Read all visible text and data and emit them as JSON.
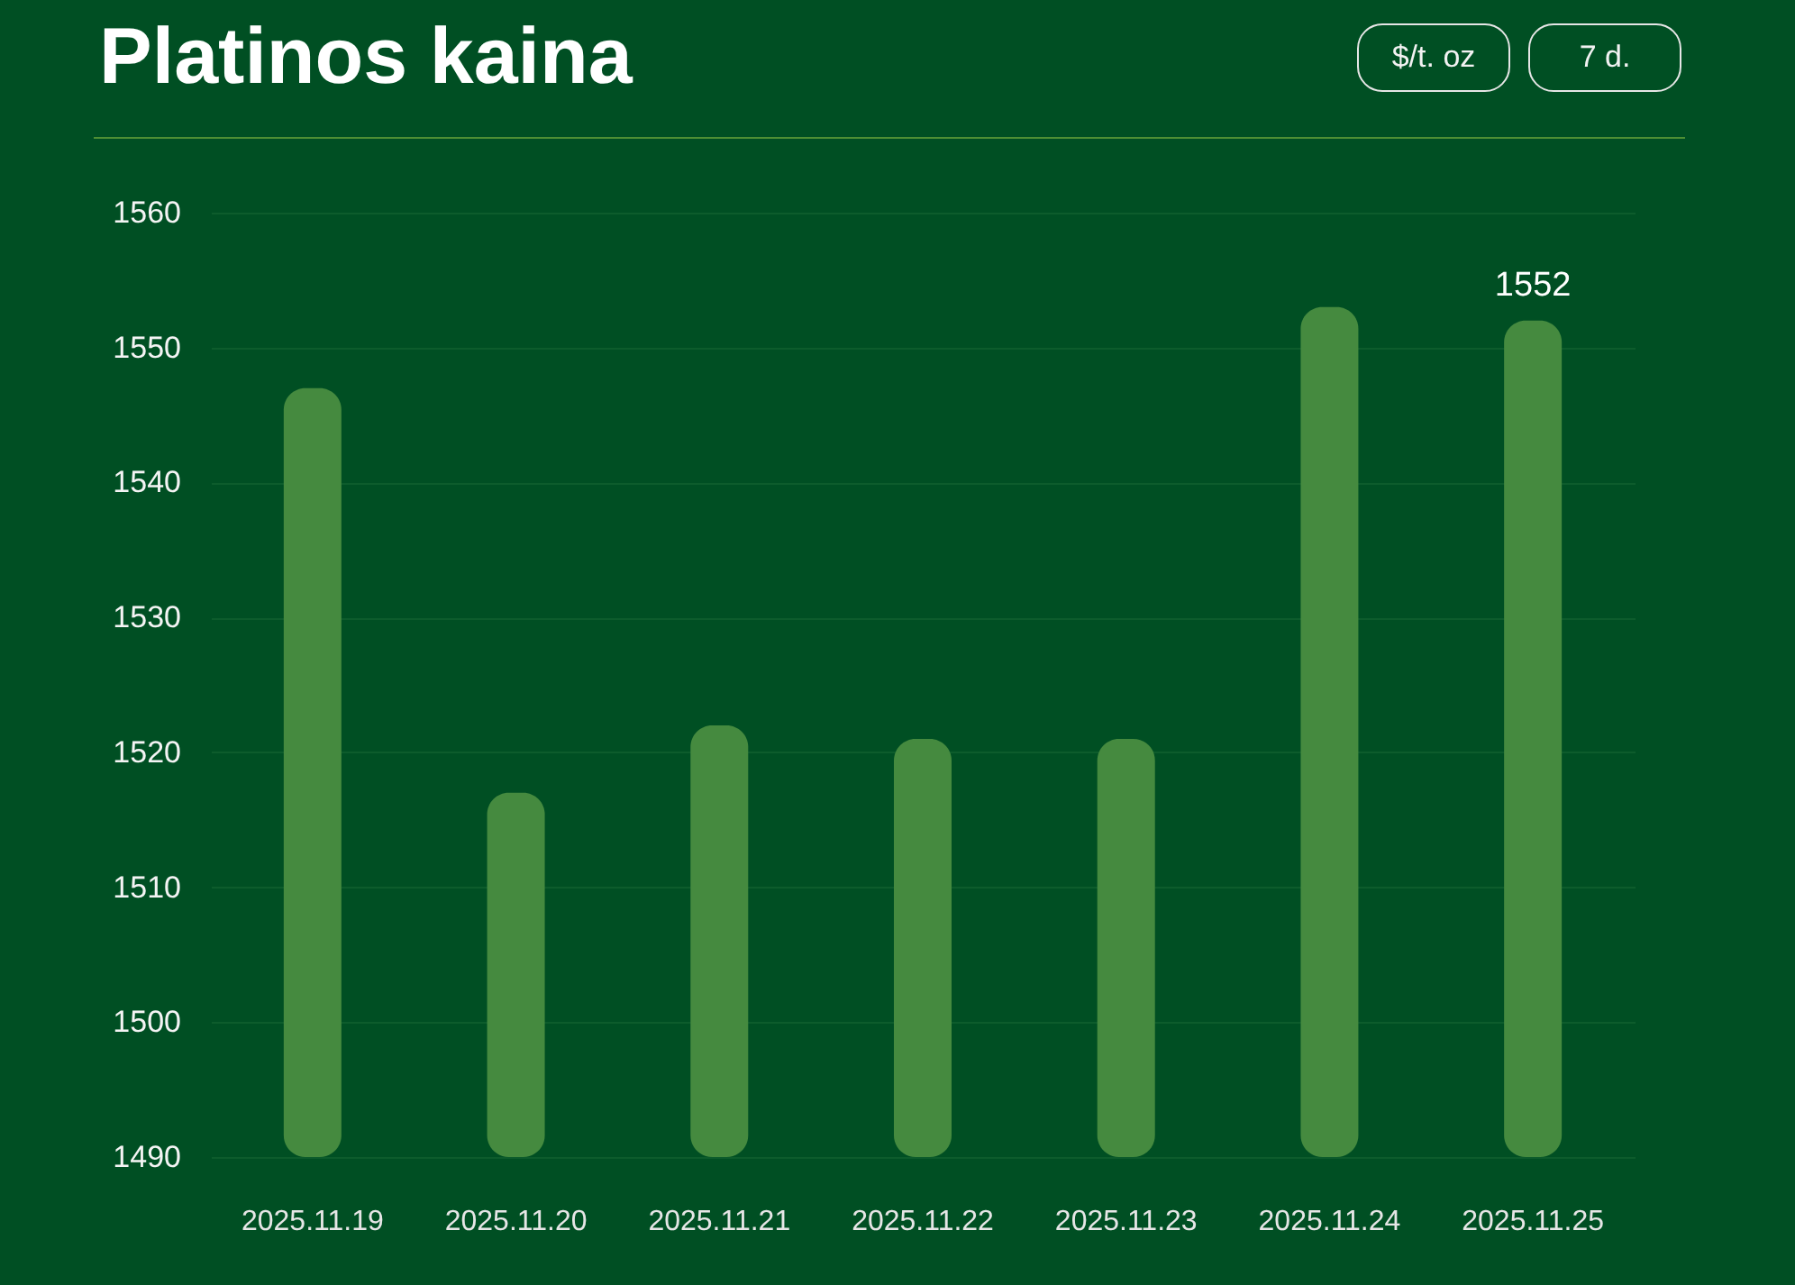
{
  "chart_data": {
    "type": "bar",
    "title": "Platinos kaina",
    "annotations": [
      "$/t. oz",
      "7 d."
    ],
    "categories": [
      "2025.11.19",
      "2025.11.20",
      "2025.11.21",
      "2025.11.22",
      "2025.11.23",
      "2025.11.24",
      "2025.11.25"
    ],
    "values": [
      1547,
      1517,
      1522,
      1521,
      1521,
      1553,
      1552
    ],
    "color": "#458a3f",
    "value_labels": [
      null,
      null,
      null,
      null,
      null,
      null,
      "1552"
    ],
    "ylim": [
      1490,
      1560
    ],
    "yticks": [
      1490,
      1500,
      1510,
      1520,
      1530,
      1540,
      1550,
      1560
    ],
    "grid": "y"
  }
}
